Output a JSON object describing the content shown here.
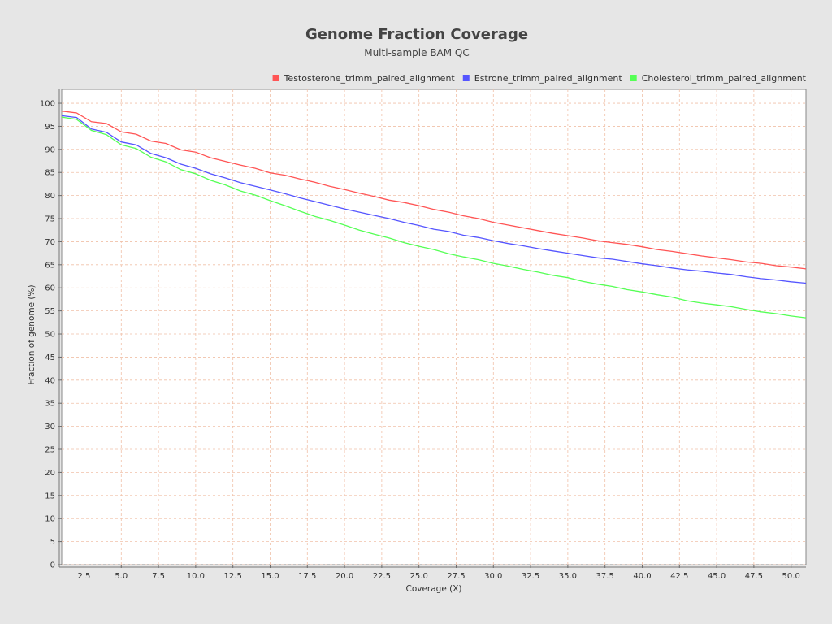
{
  "chart_data": {
    "type": "line",
    "title": "Genome Fraction Coverage",
    "subtitle": "Multi-sample BAM QC",
    "xlabel": "Coverage (X)",
    "ylabel": "Fraction of genome (%)",
    "xlim": [
      1,
      51
    ],
    "ylim": [
      0,
      103
    ],
    "x_ticks": [
      "2.5",
      "5.0",
      "7.5",
      "10.0",
      "12.5",
      "15.0",
      "17.5",
      "20.0",
      "22.5",
      "25.0",
      "27.5",
      "30.0",
      "32.5",
      "35.0",
      "37.5",
      "40.0",
      "42.5",
      "45.0",
      "47.5",
      "50.0"
    ],
    "y_ticks": [
      "0",
      "5",
      "10",
      "15",
      "20",
      "25",
      "30",
      "35",
      "40",
      "45",
      "50",
      "55",
      "60",
      "65",
      "70",
      "75",
      "80",
      "85",
      "90",
      "95",
      "100"
    ],
    "grid": true,
    "legend_position": "top-right",
    "x": [
      1,
      2,
      3,
      4,
      5,
      6,
      7,
      8,
      9,
      10,
      11,
      12,
      13,
      14,
      15,
      16,
      17,
      18,
      19,
      20,
      21,
      22,
      23,
      24,
      25,
      26,
      27,
      28,
      29,
      30,
      31,
      32,
      33,
      34,
      35,
      36,
      37,
      38,
      39,
      40,
      41,
      42,
      43,
      44,
      45,
      46,
      47,
      48,
      49,
      50,
      51
    ],
    "series": [
      {
        "name": "Testosterone_trimm_paired_alignment",
        "color": "#ff5555",
        "values": [
          98.3,
          97.9,
          96.0,
          95.6,
          93.8,
          93.3,
          91.8,
          91.3,
          89.9,
          89.4,
          88.2,
          87.4,
          86.6,
          85.9,
          84.9,
          84.4,
          83.6,
          82.9,
          82.0,
          81.3,
          80.5,
          79.8,
          79.0,
          78.5,
          77.8,
          77.0,
          76.4,
          75.6,
          75.0,
          74.2,
          73.6,
          73.0,
          72.4,
          71.8,
          71.3,
          70.8,
          70.2,
          69.8,
          69.4,
          68.9,
          68.3,
          67.9,
          67.4,
          66.9,
          66.5,
          66.1,
          65.6,
          65.3,
          64.8,
          64.5,
          64.1
        ]
      },
      {
        "name": "Estrone_trimm_paired_alignment",
        "color": "#5555ff",
        "values": [
          97.3,
          96.9,
          94.4,
          93.7,
          91.6,
          91.0,
          89.1,
          88.2,
          86.8,
          85.9,
          84.7,
          83.8,
          82.8,
          82.0,
          81.2,
          80.4,
          79.5,
          78.7,
          77.9,
          77.1,
          76.4,
          75.7,
          75.0,
          74.2,
          73.5,
          72.7,
          72.2,
          71.4,
          70.9,
          70.2,
          69.6,
          69.1,
          68.5,
          68.0,
          67.5,
          67.0,
          66.5,
          66.2,
          65.7,
          65.2,
          64.8,
          64.3,
          63.9,
          63.6,
          63.2,
          62.9,
          62.4,
          62.0,
          61.7,
          61.3,
          61.0
        ]
      },
      {
        "name": "Cholesterol_trimm_paired_alignment",
        "color": "#55ff55",
        "values": [
          97.0,
          96.5,
          94.1,
          93.2,
          91.0,
          90.2,
          88.3,
          87.3,
          85.6,
          84.7,
          83.3,
          82.3,
          81.0,
          80.1,
          78.9,
          77.8,
          76.6,
          75.5,
          74.6,
          73.6,
          72.5,
          71.6,
          70.8,
          69.8,
          69.0,
          68.3,
          67.4,
          66.7,
          66.1,
          65.3,
          64.7,
          64.0,
          63.4,
          62.7,
          62.2,
          61.4,
          60.8,
          60.3,
          59.6,
          59.1,
          58.5,
          58.0,
          57.2,
          56.7,
          56.3,
          55.9,
          55.3,
          54.8,
          54.4,
          53.9,
          53.5
        ]
      }
    ]
  }
}
